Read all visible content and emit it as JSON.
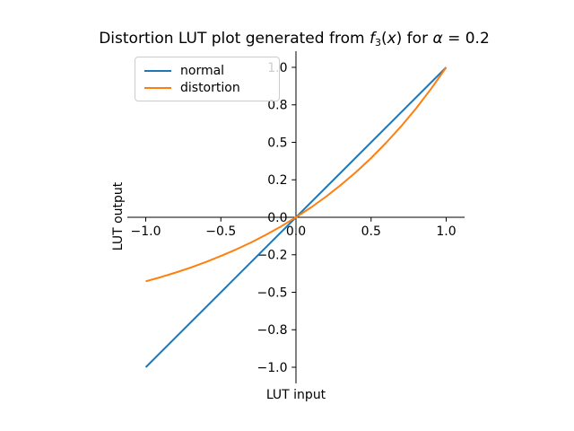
{
  "window": {
    "background": "#ffffff"
  },
  "chart_data": {
    "type": "line",
    "title": "Distortion LUT plot generated from f₃(x) for α = 0.2",
    "title_parts": [
      {
        "text": "Distortion LUT plot generated from ",
        "style": "regular"
      },
      {
        "text": "f",
        "style": "italic"
      },
      {
        "text": "3",
        "style": "subscript"
      },
      {
        "text": "(",
        "style": "regular"
      },
      {
        "text": "x",
        "style": "italic"
      },
      {
        "text": ") for ",
        "style": "regular"
      },
      {
        "text": "α",
        "style": "italic"
      },
      {
        "text": " = 0.2",
        "style": "regular"
      }
    ],
    "xlabel": "LUT input",
    "ylabel": "LUT output",
    "xlim": [
      -1.12,
      1.12
    ],
    "ylim": [
      -1.11,
      1.11
    ],
    "grid": false,
    "axes_style": "spines-centered-at-zero",
    "x_ticks": {
      "values": [
        -1.0,
        -0.5,
        0.0,
        0.5,
        1.0
      ],
      "labels": [
        "−1.0",
        "−0.5",
        "0.0",
        "0.5",
        "1.0"
      ]
    },
    "y_ticks": {
      "values": [
        -1.0,
        -0.75,
        -0.5,
        -0.25,
        0.0,
        0.25,
        0.5,
        0.75,
        1.0
      ],
      "labels": [
        "−1.0",
        "−0.8",
        "−0.5",
        "−0.2",
        "0.0",
        "0.2",
        "0.5",
        "0.8",
        "1.0"
      ]
    },
    "legend": {
      "position": "upper left",
      "entries": [
        "normal",
        "distortion"
      ]
    },
    "series": [
      {
        "name": "normal",
        "color": "#1f77b4",
        "x": [
          -1.0,
          1.0
        ],
        "y": [
          -1.0,
          1.0
        ]
      },
      {
        "name": "distortion",
        "color": "#ff7f0e",
        "x": [
          -1.0,
          -0.9,
          -0.8,
          -0.7,
          -0.6,
          -0.5,
          -0.4,
          -0.3,
          -0.2,
          -0.1,
          0.0,
          0.1,
          0.2,
          0.3,
          0.4,
          0.5,
          0.6,
          0.7,
          0.8,
          0.9,
          1.0
        ],
        "y": [
          -0.427,
          -0.399,
          -0.368,
          -0.335,
          -0.298,
          -0.258,
          -0.215,
          -0.168,
          -0.117,
          -0.061,
          0.0,
          0.066,
          0.138,
          0.217,
          0.302,
          0.395,
          0.497,
          0.607,
          0.727,
          0.858,
          1.0
        ]
      }
    ]
  }
}
